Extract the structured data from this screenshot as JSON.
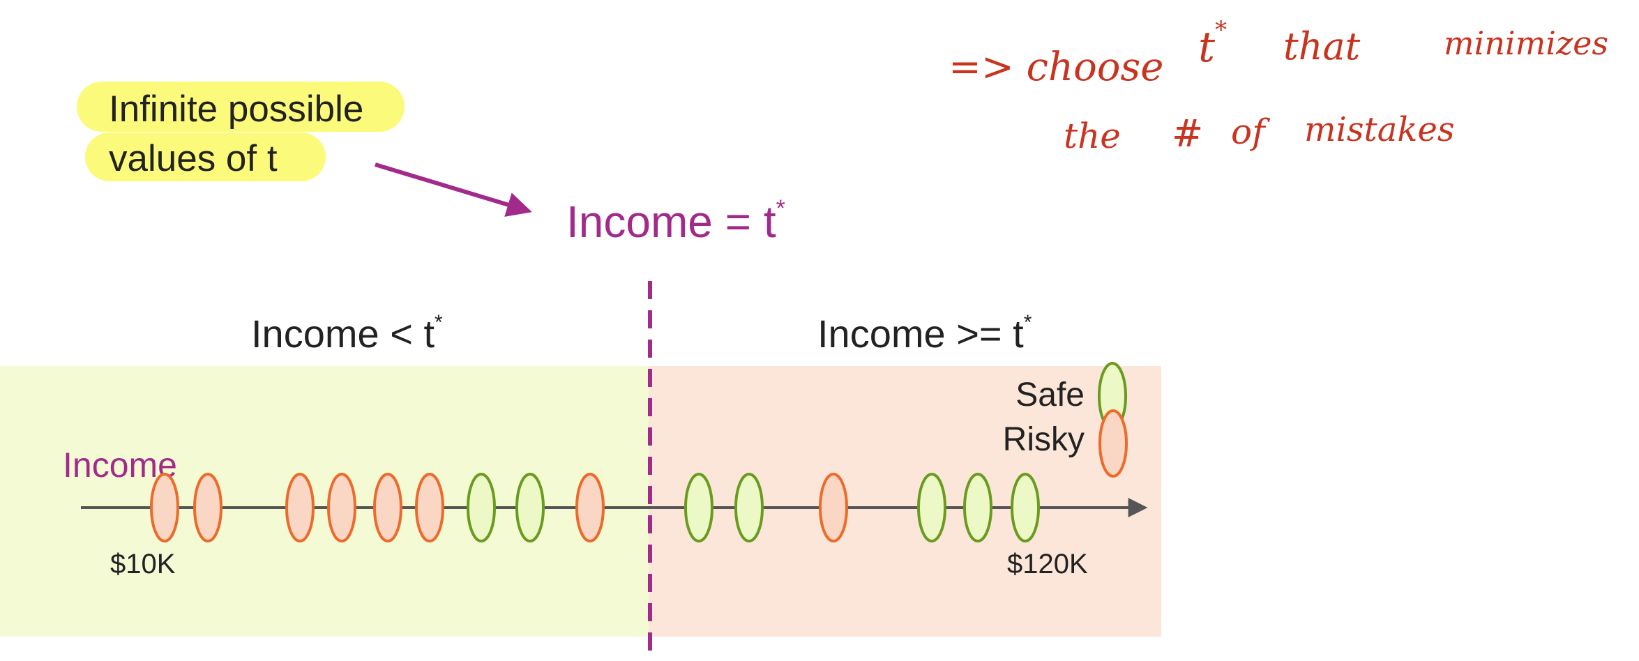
{
  "callout": {
    "line1": "Infinite possible",
    "line2": "values of t"
  },
  "threshold": {
    "label_prefix": "Income = t",
    "label_sup": "*"
  },
  "regions": {
    "left_prefix": "Income <  t",
    "left_sup": "*",
    "right_prefix": "Income >= t",
    "right_sup": "*"
  },
  "axis": {
    "label": "Income",
    "min_label": "$10K",
    "max_label": "$120K"
  },
  "legend": {
    "safe": "Safe",
    "risky": "Risky"
  },
  "points": [
    {
      "class": "risky",
      "order": 1
    },
    {
      "class": "risky",
      "order": 2
    },
    {
      "class": "risky",
      "order": 3
    },
    {
      "class": "risky",
      "order": 4
    },
    {
      "class": "risky",
      "order": 5
    },
    {
      "class": "risky",
      "order": 6
    },
    {
      "class": "safe",
      "order": 7
    },
    {
      "class": "safe",
      "order": 8
    },
    {
      "class": "risky",
      "order": 9
    },
    {
      "class": "safe",
      "order": 10
    },
    {
      "class": "safe",
      "order": 11
    },
    {
      "class": "risky",
      "order": 12
    },
    {
      "class": "safe",
      "order": 13
    },
    {
      "class": "safe",
      "order": 14
    },
    {
      "class": "safe",
      "order": 15
    }
  ],
  "handwriting": {
    "line1_a": "=> choose",
    "line1_b": "t",
    "line1_sup": "*",
    "line1_c": "that",
    "line1_d": "minimizes",
    "line2_a": "the",
    "line2_b": "#",
    "line2_c": "of",
    "line2_d": "mistakes"
  },
  "colors": {
    "safe_fill": "#ecf8c6",
    "safe_stroke": "#6a9a1e",
    "risky_fill": "#fad7c4",
    "risky_stroke": "#ec6a2a",
    "left_region": "#f3fad4",
    "right_region": "#fbe6d9",
    "accent": "#a12a8a",
    "callout": "#fbfa7a",
    "handwriting": "#c8341f",
    "axis": "#555555"
  }
}
